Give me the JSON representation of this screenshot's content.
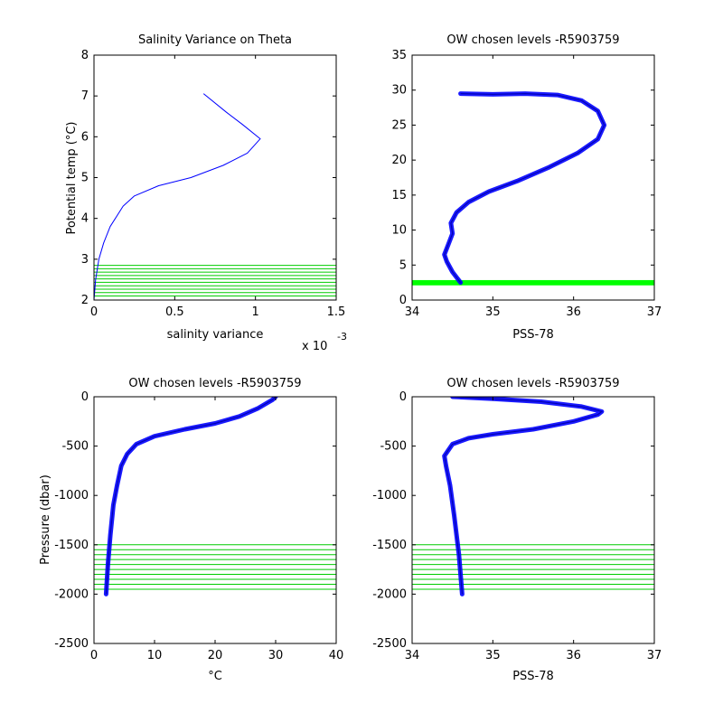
{
  "figure": {
    "background": "#ffffff"
  },
  "chart_data": [
    {
      "id": "p1",
      "type": "line",
      "title": "Salinity Variance on Theta",
      "xlabel": "salinity variance",
      "ylabel": "Potential temp (°C)",
      "x_multiplier_label": "x 10",
      "x_multiplier_exponent": "-3",
      "xlim": [
        0,
        1.5
      ],
      "ylim": [
        2,
        8
      ],
      "xticks": [
        0,
        0.5,
        1,
        1.5
      ],
      "yticks": [
        2,
        3,
        4,
        5,
        6,
        7,
        8
      ],
      "grid": false,
      "series": [
        {
          "color": "#0000ff",
          "x": [
            0.0,
            0.01,
            0.03,
            0.06,
            0.1,
            0.18,
            0.25,
            0.4,
            0.6,
            0.8,
            0.95,
            1.03,
            0.92,
            0.82,
            0.68
          ],
          "y": [
            2.0,
            2.5,
            3.0,
            3.4,
            3.8,
            4.3,
            4.55,
            4.8,
            5.0,
            5.3,
            5.6,
            5.95,
            6.3,
            6.6,
            7.05
          ]
        }
      ],
      "chosen_levels": {
        "color": "#00cc00",
        "count": 10,
        "range": [
          2.1,
          2.85
        ]
      }
    },
    {
      "id": "p2",
      "type": "line",
      "title": "OW chosen levels -R5903759",
      "xlabel": "PSS-78",
      "ylabel": "",
      "xlim": [
        34,
        37
      ],
      "ylim": [
        0,
        35
      ],
      "xticks": [
        34,
        35,
        36,
        37
      ],
      "yticks": [
        0,
        5,
        10,
        15,
        20,
        25,
        30,
        35
      ],
      "grid": false,
      "series": [
        {
          "color": "#0000ff",
          "x": [
            34.6,
            34.5,
            34.43,
            34.4,
            34.45,
            34.5,
            34.48,
            34.55,
            34.7,
            34.95,
            35.3,
            35.7,
            36.05,
            36.3,
            36.38,
            36.3,
            36.1,
            35.8,
            35.4,
            35.0,
            34.6
          ],
          "y": [
            2.5,
            4.0,
            5.5,
            6.5,
            8.0,
            9.5,
            11.0,
            12.5,
            14.0,
            15.5,
            17.0,
            19.0,
            21.0,
            23.0,
            25.0,
            27.0,
            28.5,
            29.3,
            29.5,
            29.4,
            29.5
          ]
        }
      ],
      "chosen_levels": {
        "color": "#00ff00",
        "count": 10,
        "range": [
          2.1,
          2.85
        ]
      }
    },
    {
      "id": "p3",
      "type": "line",
      "title": "OW chosen levels -R5903759",
      "xlabel": "°C",
      "ylabel": "Pressure (dbar)",
      "xlim": [
        0,
        40
      ],
      "ylim": [
        -2500,
        0
      ],
      "xticks": [
        0,
        10,
        20,
        30,
        40
      ],
      "yticks": [
        -2500,
        -2000,
        -1500,
        -1000,
        -500,
        0
      ],
      "grid": false,
      "series": [
        {
          "color": "#0000ff",
          "x": [
            2.0,
            2.3,
            2.7,
            3.2,
            3.8,
            4.5,
            5.5,
            7.0,
            10.0,
            15.0,
            20.0,
            24.0,
            27.0,
            29.5,
            30.0
          ],
          "y": [
            -2000,
            -1700,
            -1400,
            -1100,
            -900,
            -700,
            -580,
            -480,
            -400,
            -330,
            -270,
            -200,
            -120,
            -30,
            0
          ]
        }
      ],
      "chosen_levels": {
        "color": "#00cc00",
        "count": 10,
        "range": [
          -1950,
          -1500
        ]
      }
    },
    {
      "id": "p4",
      "type": "line",
      "title": "OW chosen levels -R5903759",
      "xlabel": "PSS-78",
      "ylabel": "",
      "xlim": [
        34,
        37
      ],
      "ylim": [
        -2500,
        0
      ],
      "xticks": [
        34,
        35,
        36,
        37
      ],
      "yticks": [
        -2500,
        -2000,
        -1500,
        -1000,
        -500,
        0
      ],
      "grid": false,
      "series": [
        {
          "color": "#0000ff",
          "x": [
            34.62,
            34.58,
            34.52,
            34.47,
            34.42,
            34.4,
            34.5,
            34.7,
            35.0,
            35.5,
            36.0,
            36.3,
            36.35,
            36.1,
            35.6,
            35.0,
            34.5
          ],
          "y": [
            -2000,
            -1600,
            -1200,
            -900,
            -700,
            -600,
            -480,
            -420,
            -380,
            -330,
            -250,
            -180,
            -150,
            -100,
            -50,
            -20,
            0
          ]
        }
      ],
      "chosen_levels": {
        "color": "#00cc00",
        "count": 10,
        "range": [
          -1950,
          -1500
        ]
      }
    }
  ]
}
